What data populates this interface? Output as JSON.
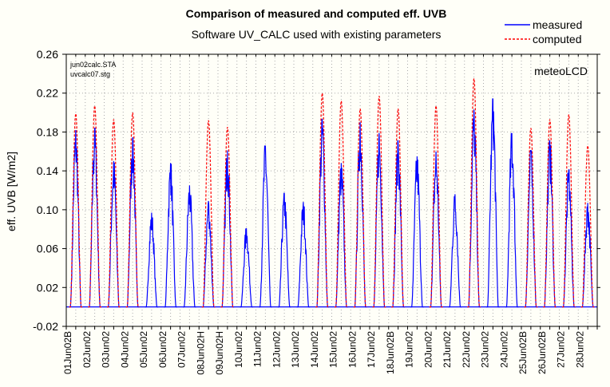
{
  "chart_data": {
    "type": "line",
    "title": "Comparison of measured and computed eff. UVB",
    "subtitle": "Software UV_CALC used with existing parameters",
    "ylabel": "eff. UVB [W/m2]",
    "xlabel": "",
    "ylim": [
      -0.02,
      0.26
    ],
    "yticks": [
      "0.26",
      "0.22",
      "0.18",
      "0.14",
      "0.10",
      "0.06",
      "0.02",
      "-0.02"
    ],
    "ytick_values": [
      0.26,
      0.22,
      0.18,
      0.14,
      0.1,
      0.06,
      0.02,
      -0.02
    ],
    "grid": true,
    "legend_position": "top-right",
    "annotations": [
      "jun02calc.STA",
      "uvcalc07.stg"
    ],
    "watermark": "meteoLCD",
    "categories": [
      "01Jun02B",
      "02Jun02",
      "03Jun02",
      "04Jun02",
      "05Jun02",
      "06Jun02",
      "07Jun02",
      "08Jun02H",
      "09Jun02H",
      "10Jun02",
      "11Jun02",
      "12Jun02",
      "13Jun02",
      "14Jun02",
      "15Jun02",
      "16Jun02",
      "17Jun02",
      "18Jun02B",
      "19Jun02",
      "20Jun02",
      "21Jun02",
      "22Jun02",
      "23Jun02",
      "24Jun02",
      "25Jun02B",
      "26Jun02B",
      "27Jun02",
      "28Jun02"
    ],
    "series": [
      {
        "name": "measured",
        "color": "#0000ff",
        "style": "solid",
        "daily_peaks": [
          0.182,
          0.184,
          0.15,
          0.174,
          0.097,
          0.148,
          0.125,
          0.109,
          0.161,
          0.081,
          0.166,
          0.117,
          0.108,
          0.193,
          0.148,
          0.19,
          0.179,
          0.171,
          0.155,
          0.16,
          0.116,
          0.203,
          0.214,
          0.179,
          0.161,
          0.171,
          0.141,
          0.107
        ]
      },
      {
        "name": "computed",
        "color": "#ff0000",
        "style": "dashed",
        "daily_peaks": [
          0.199,
          0.207,
          0.193,
          0.2,
          null,
          null,
          null,
          0.192,
          0.185,
          null,
          null,
          null,
          null,
          0.22,
          0.212,
          0.204,
          0.217,
          0.204,
          null,
          0.207,
          null,
          0.235,
          null,
          null,
          0.184,
          0.193,
          0.198,
          0.166
        ]
      }
    ]
  }
}
